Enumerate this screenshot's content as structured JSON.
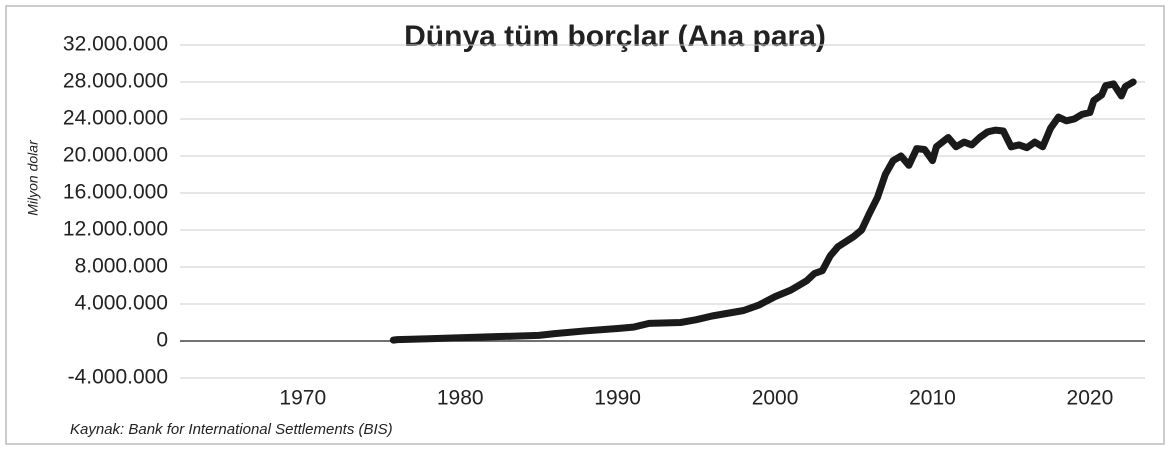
{
  "chart_data": {
    "type": "line",
    "title": "Dünya tüm borçlar (Ana para)",
    "ylabel": "Milyon dolar",
    "source": "Kaynak: Bank for International Settlements   (BIS)",
    "xlim": [
      1962.2,
      2023.5
    ],
    "xticks": [
      1970,
      1980,
      1990,
      2000,
      2010,
      2020
    ],
    "ylim": [
      -4000000,
      32000000
    ],
    "yticks": [
      {
        "value": -4000000,
        "label": "-4.000.000"
      },
      0,
      {
        "value": 4000000,
        "label": "4.000.000"
      },
      {
        "value": 8000000,
        "label": "8.000.000"
      },
      {
        "value": 12000000,
        "label": "12.000.000"
      },
      {
        "value": 16000000,
        "label": "16.000.000"
      },
      {
        "value": 20000000,
        "label": "20.000.000"
      },
      {
        "value": 24000000,
        "label": "24.000.000"
      },
      {
        "value": 28000000,
        "label": "28.000.000"
      },
      {
        "value": 32000000,
        "label": "32.000.000"
      }
    ],
    "grid": true,
    "color": "#1a1a1a",
    "x": [
      1975.75,
      1976,
      1978,
      1980,
      1982,
      1984,
      1985,
      1986,
      1988,
      1990,
      1991,
      1992,
      1994,
      1995,
      1996,
      1998,
      1999,
      2000,
      2001,
      2002,
      2002.5,
      2003,
      2003.5,
      2004,
      2005,
      2005.5,
      2006,
      2006.5,
      2007,
      2007.5,
      2008,
      2008.5,
      2009,
      2009.5,
      2010,
      2010.25,
      2011,
      2011.5,
      2012,
      2012.5,
      2013,
      2013.5,
      2014,
      2014.5,
      2015,
      2015.5,
      2016,
      2016.5,
      2017,
      2017.5,
      2018,
      2018.5,
      2019,
      2019.5,
      2020,
      2020.25,
      2020.75,
      2021,
      2021.5,
      2022,
      2022.25,
      2022.75
    ],
    "values": [
      100000,
      150000,
      250000,
      350000,
      450000,
      550000,
      600000,
      800000,
      1100000,
      1350000,
      1500000,
      1900000,
      2000000,
      2300000,
      2700000,
      3300000,
      3900000,
      4800000,
      5500000,
      6500000,
      7300000,
      7600000,
      9200000,
      10200000,
      11300000,
      12000000,
      13800000,
      15500000,
      18000000,
      19500000,
      20000000,
      19000000,
      20800000,
      20700000,
      19500000,
      21000000,
      22000000,
      21000000,
      21500000,
      21200000,
      22000000,
      22600000,
      22800000,
      22700000,
      21000000,
      21200000,
      20900000,
      21500000,
      21000000,
      23000000,
      24200000,
      23800000,
      24000000,
      24500000,
      24700000,
      26000000,
      26600000,
      27600000,
      27800000,
      26500000,
      27500000,
      28000000
    ]
  }
}
